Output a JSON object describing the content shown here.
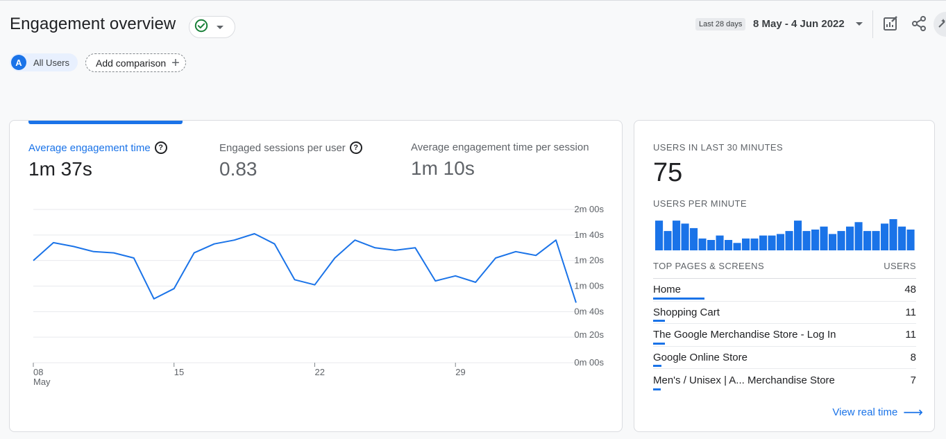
{
  "header": {
    "title": "Engagement overview",
    "date_tag": "Last 28 days",
    "date_range": "8 May - 4 Jun 2022"
  },
  "chips": {
    "segment_letter": "A",
    "segment_label": "All Users",
    "add_comparison": "Add comparison"
  },
  "metrics": [
    {
      "label": "Average engagement time",
      "value": "1m 37s",
      "active": true
    },
    {
      "label": "Engaged sessions per user",
      "value": "0.83",
      "active": false
    },
    {
      "label": "Average engagement time per session",
      "value": "1m 10s",
      "active": false
    }
  ],
  "chart_data": {
    "type": "line",
    "y_tick_labels": [
      "2m 00s",
      "1m 40s",
      "1m 20s",
      "1m 00s",
      "0m 40s",
      "0m 20s",
      "0m 00s"
    ],
    "x_tick_labels": [
      [
        "08",
        "May"
      ],
      [
        "15",
        ""
      ],
      [
        "22",
        ""
      ],
      [
        "29",
        ""
      ]
    ],
    "ylim": [
      0,
      120
    ],
    "series": [
      {
        "values": [
          80,
          94,
          91,
          87,
          86,
          82,
          50,
          58,
          86,
          93,
          96,
          101,
          93,
          65,
          61,
          82,
          96,
          90,
          88,
          90,
          64,
          68,
          63,
          82,
          87,
          84,
          96,
          47
        ]
      }
    ],
    "color": "#1a73e8"
  },
  "realtime": {
    "users_heading": "USERS IN LAST 30 MINUTES",
    "users_count": "75",
    "per_minute_heading": "USERS PER MINUTE",
    "per_minute": [
      10,
      6.5,
      10,
      9,
      7.5,
      4,
      3.5,
      5,
      3.5,
      2.5,
      4,
      4,
      5,
      5,
      5.5,
      6.5,
      10,
      6.5,
      7,
      8,
      5.5,
      6.5,
      8,
      9.5,
      6.5,
      6.5,
      9,
      10.5,
      8,
      7
    ],
    "table_heading": "TOP PAGES & SCREENS",
    "table_col": "USERS",
    "rows": [
      {
        "page": "Home",
        "users": "48",
        "share": 0.195
      },
      {
        "page": "Shopping Cart",
        "users": "11",
        "share": 0.045
      },
      {
        "page": "The Google Merchandise Store - Log In",
        "users": "11",
        "share": 0.045
      },
      {
        "page": "Google Online Store",
        "users": "8",
        "share": 0.032
      },
      {
        "page": "Men's / Unisex | A... Merchandise Store",
        "users": "7",
        "share": 0.028
      }
    ],
    "view_link": "View real time"
  },
  "colors": {
    "accent": "#1a73e8",
    "check": "#188038"
  },
  "icons": [
    "check-circle-icon",
    "chevron-down-icon",
    "plus-icon",
    "edit-report-icon",
    "share-icon",
    "insights-icon",
    "help-icon",
    "arrow-right-icon"
  ]
}
